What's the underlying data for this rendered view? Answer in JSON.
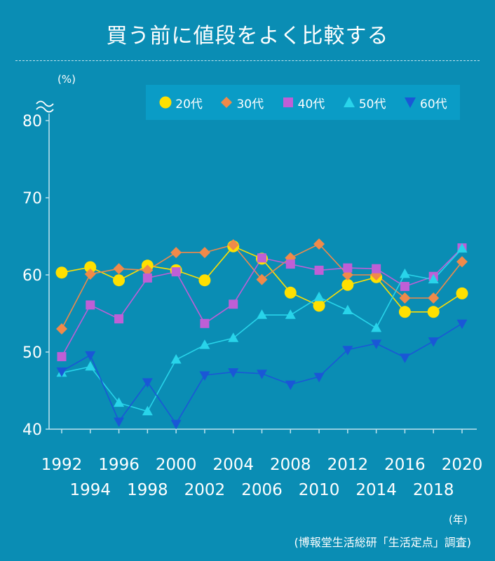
{
  "title": "買う前に値段をよく比較する",
  "y_unit": "(%)",
  "x_unit": "(年)",
  "source": "(博報堂生活総研「生活定点」調査)",
  "colors": {
    "background": "#0a8db4",
    "legend_bg": "#0a9cc6",
    "axis": "#bfe3ee",
    "20代": "#ffe000",
    "30代": "#f08a4a",
    "40代": "#bf5fd6",
    "50代": "#28d4ea",
    "60代": "#1a57d6"
  },
  "chart_data": {
    "type": "line",
    "xlabel": "",
    "ylabel": "(%)",
    "ylim": [
      40,
      80
    ],
    "yticks": [
      40,
      50,
      60,
      70,
      80
    ],
    "xlim": [
      1992,
      2020
    ],
    "xticks_row1": [
      "1992",
      "1996",
      "2000",
      "2004",
      "2008",
      "2012",
      "2016",
      "2020"
    ],
    "xticks_row2": [
      "1994",
      "1998",
      "2002",
      "2006",
      "2010",
      "2014",
      "2018"
    ],
    "axis_break": true,
    "grid": false,
    "legend_position": "top-right",
    "x": [
      1992,
      1994,
      1996,
      1998,
      2000,
      2002,
      2004,
      2006,
      2008,
      2010,
      2012,
      2014,
      2016,
      2018,
      2020
    ],
    "series": [
      {
        "name": "20代",
        "marker": "circle",
        "values": [
          60.3,
          61.0,
          59.3,
          61.2,
          60.6,
          59.3,
          63.7,
          62.1,
          57.7,
          56.0,
          58.7,
          59.7,
          55.2,
          55.2,
          57.6
        ]
      },
      {
        "name": "30代",
        "marker": "diamond",
        "values": [
          53.0,
          60.1,
          60.8,
          60.6,
          62.9,
          62.9,
          63.9,
          59.4,
          62.2,
          64.0,
          60.0,
          60.0,
          57.0,
          57.0,
          61.7
        ]
      },
      {
        "name": "40代",
        "marker": "square",
        "values": [
          49.4,
          56.1,
          54.3,
          59.6,
          60.4,
          53.7,
          56.2,
          62.2,
          61.4,
          60.6,
          60.9,
          60.8,
          58.5,
          59.8,
          63.5
        ]
      },
      {
        "name": "50代",
        "marker": "triangle-up",
        "values": [
          47.3,
          48.1,
          43.4,
          42.3,
          49.0,
          50.9,
          51.8,
          54.8,
          54.8,
          57.1,
          55.4,
          53.1,
          60.1,
          59.4,
          63.4
        ]
      },
      {
        "name": "60代",
        "marker": "triangle-down",
        "values": [
          47.5,
          49.6,
          41.0,
          46.1,
          40.7,
          47.0,
          47.4,
          47.2,
          45.8,
          46.8,
          50.3,
          51.1,
          49.3,
          51.4,
          53.7
        ]
      }
    ]
  }
}
